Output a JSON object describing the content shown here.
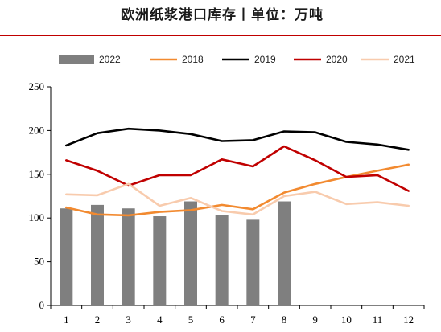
{
  "header": {
    "title": "欧洲纸浆港口库存丨单位：万吨"
  },
  "chart_data": {
    "type": "bar+line",
    "title": "欧洲纸浆港口库存丨单位：万吨",
    "categories": [
      "1",
      "2",
      "3",
      "4",
      "5",
      "6",
      "7",
      "8",
      "9",
      "10",
      "11",
      "12"
    ],
    "ylim": [
      0,
      250
    ],
    "yticks": [
      0,
      50,
      100,
      150,
      200,
      250
    ],
    "grid": false,
    "legend": "top",
    "bar_series": {
      "name": "2022",
      "color": "#7f7f7f",
      "values": [
        111,
        115,
        111,
        102,
        119,
        103,
        98,
        119,
        null,
        null,
        null,
        null
      ]
    },
    "line_series": [
      {
        "name": "2018",
        "color": "#f28a30",
        "values": [
          112,
          104,
          103,
          107,
          109,
          115,
          110,
          129,
          139,
          147,
          154,
          161
        ]
      },
      {
        "name": "2019",
        "color": "#000000",
        "values": [
          183,
          197,
          202,
          200,
          196,
          188,
          189,
          199,
          198,
          187,
          184,
          178
        ]
      },
      {
        "name": "2020",
        "color": "#c00000",
        "values": [
          166,
          154,
          137,
          149,
          149,
          167,
          159,
          182,
          166,
          147,
          149,
          131
        ]
      },
      {
        "name": "2021",
        "color": "#f8cbad",
        "values": [
          127,
          126,
          139,
          114,
          123,
          108,
          104,
          125,
          130,
          116,
          118,
          114
        ]
      }
    ]
  }
}
